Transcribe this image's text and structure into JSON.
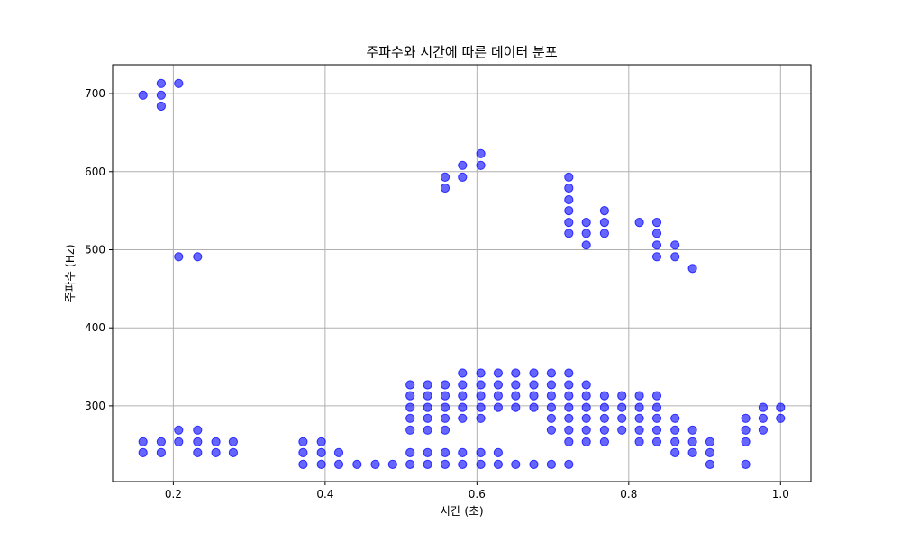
{
  "chart_data": {
    "type": "scatter",
    "title": "주파수와 시간에 따른 데이터 분포",
    "xlabel": "시간 (초)",
    "ylabel": "주파수 (Hz)",
    "xlim": [
      0.12,
      1.04
    ],
    "ylim": [
      203,
      737
    ],
    "xticks": [
      0.2,
      0.4,
      0.6,
      0.8,
      1.0
    ],
    "xtick_labels": [
      "0.2",
      "0.4",
      "0.6",
      "0.8",
      "1.0"
    ],
    "yticks": [
      300,
      400,
      500,
      600,
      700
    ],
    "ytick_labels": [
      "300",
      "400",
      "500",
      "600",
      "700"
    ],
    "grid": true,
    "legend": "none",
    "marker_color": "#0000ff",
    "marker_alpha": 0.6,
    "points": [
      [
        0.16,
        698
      ],
      [
        0.184,
        713
      ],
      [
        0.184,
        698
      ],
      [
        0.184,
        684
      ],
      [
        0.207,
        713
      ],
      [
        0.207,
        491
      ],
      [
        0.232,
        491
      ],
      [
        0.16,
        254
      ],
      [
        0.16,
        240
      ],
      [
        0.184,
        254
      ],
      [
        0.184,
        240
      ],
      [
        0.207,
        269
      ],
      [
        0.207,
        254
      ],
      [
        0.232,
        269
      ],
      [
        0.232,
        254
      ],
      [
        0.232,
        240
      ],
      [
        0.256,
        254
      ],
      [
        0.256,
        240
      ],
      [
        0.279,
        254
      ],
      [
        0.279,
        240
      ],
      [
        0.371,
        254
      ],
      [
        0.371,
        240
      ],
      [
        0.371,
        225
      ],
      [
        0.395,
        254
      ],
      [
        0.395,
        240
      ],
      [
        0.395,
        225
      ],
      [
        0.418,
        240
      ],
      [
        0.418,
        225
      ],
      [
        0.442,
        225
      ],
      [
        0.466,
        225
      ],
      [
        0.489,
        225
      ],
      [
        0.512,
        327
      ],
      [
        0.512,
        313
      ],
      [
        0.512,
        298
      ],
      [
        0.512,
        284
      ],
      [
        0.512,
        269
      ],
      [
        0.512,
        240
      ],
      [
        0.512,
        225
      ],
      [
        0.535,
        327
      ],
      [
        0.535,
        313
      ],
      [
        0.535,
        298
      ],
      [
        0.535,
        284
      ],
      [
        0.535,
        269
      ],
      [
        0.535,
        240
      ],
      [
        0.535,
        225
      ],
      [
        0.558,
        327
      ],
      [
        0.558,
        313
      ],
      [
        0.558,
        298
      ],
      [
        0.558,
        284
      ],
      [
        0.558,
        269
      ],
      [
        0.558,
        240
      ],
      [
        0.558,
        225
      ],
      [
        0.581,
        342
      ],
      [
        0.581,
        327
      ],
      [
        0.581,
        313
      ],
      [
        0.581,
        298
      ],
      [
        0.581,
        284
      ],
      [
        0.581,
        240
      ],
      [
        0.581,
        225
      ],
      [
        0.605,
        342
      ],
      [
        0.605,
        327
      ],
      [
        0.605,
        313
      ],
      [
        0.605,
        298
      ],
      [
        0.605,
        284
      ],
      [
        0.605,
        240
      ],
      [
        0.605,
        225
      ],
      [
        0.628,
        342
      ],
      [
        0.628,
        327
      ],
      [
        0.628,
        313
      ],
      [
        0.628,
        298
      ],
      [
        0.628,
        240
      ],
      [
        0.628,
        225
      ],
      [
        0.651,
        342
      ],
      [
        0.651,
        327
      ],
      [
        0.651,
        313
      ],
      [
        0.651,
        298
      ],
      [
        0.651,
        225
      ],
      [
        0.675,
        342
      ],
      [
        0.675,
        327
      ],
      [
        0.675,
        313
      ],
      [
        0.675,
        298
      ],
      [
        0.675,
        225
      ],
      [
        0.698,
        342
      ],
      [
        0.698,
        327
      ],
      [
        0.698,
        313
      ],
      [
        0.698,
        298
      ],
      [
        0.698,
        284
      ],
      [
        0.698,
        269
      ],
      [
        0.698,
        225
      ],
      [
        0.721,
        342
      ],
      [
        0.721,
        327
      ],
      [
        0.721,
        313
      ],
      [
        0.721,
        298
      ],
      [
        0.721,
        284
      ],
      [
        0.721,
        269
      ],
      [
        0.721,
        254
      ],
      [
        0.721,
        225
      ],
      [
        0.744,
        327
      ],
      [
        0.744,
        313
      ],
      [
        0.744,
        298
      ],
      [
        0.744,
        284
      ],
      [
        0.744,
        269
      ],
      [
        0.744,
        254
      ],
      [
        0.768,
        313
      ],
      [
        0.768,
        298
      ],
      [
        0.768,
        284
      ],
      [
        0.768,
        269
      ],
      [
        0.768,
        254
      ],
      [
        0.791,
        313
      ],
      [
        0.791,
        298
      ],
      [
        0.791,
        284
      ],
      [
        0.791,
        269
      ],
      [
        0.814,
        313
      ],
      [
        0.814,
        298
      ],
      [
        0.814,
        284
      ],
      [
        0.814,
        269
      ],
      [
        0.814,
        254
      ],
      [
        0.837,
        313
      ],
      [
        0.837,
        298
      ],
      [
        0.837,
        284
      ],
      [
        0.837,
        269
      ],
      [
        0.837,
        254
      ],
      [
        0.861,
        284
      ],
      [
        0.861,
        269
      ],
      [
        0.861,
        254
      ],
      [
        0.861,
        240
      ],
      [
        0.884,
        269
      ],
      [
        0.884,
        254
      ],
      [
        0.884,
        240
      ],
      [
        0.907,
        254
      ],
      [
        0.907,
        240
      ],
      [
        0.907,
        225
      ],
      [
        0.954,
        284
      ],
      [
        0.954,
        269
      ],
      [
        0.954,
        254
      ],
      [
        0.954,
        225
      ],
      [
        0.977,
        298
      ],
      [
        0.977,
        284
      ],
      [
        0.977,
        269
      ],
      [
        1.0,
        298
      ],
      [
        1.0,
        284
      ],
      [
        0.558,
        593
      ],
      [
        0.558,
        579
      ],
      [
        0.581,
        608
      ],
      [
        0.581,
        593
      ],
      [
        0.605,
        623
      ],
      [
        0.605,
        608
      ],
      [
        0.721,
        593
      ],
      [
        0.721,
        579
      ],
      [
        0.721,
        564
      ],
      [
        0.721,
        550
      ],
      [
        0.721,
        535
      ],
      [
        0.721,
        521
      ],
      [
        0.744,
        535
      ],
      [
        0.744,
        521
      ],
      [
        0.744,
        506
      ],
      [
        0.768,
        550
      ],
      [
        0.768,
        535
      ],
      [
        0.768,
        521
      ],
      [
        0.814,
        535
      ],
      [
        0.837,
        535
      ],
      [
        0.837,
        521
      ],
      [
        0.837,
        506
      ],
      [
        0.837,
        491
      ],
      [
        0.861,
        506
      ],
      [
        0.861,
        491
      ],
      [
        0.884,
        476
      ]
    ]
  }
}
